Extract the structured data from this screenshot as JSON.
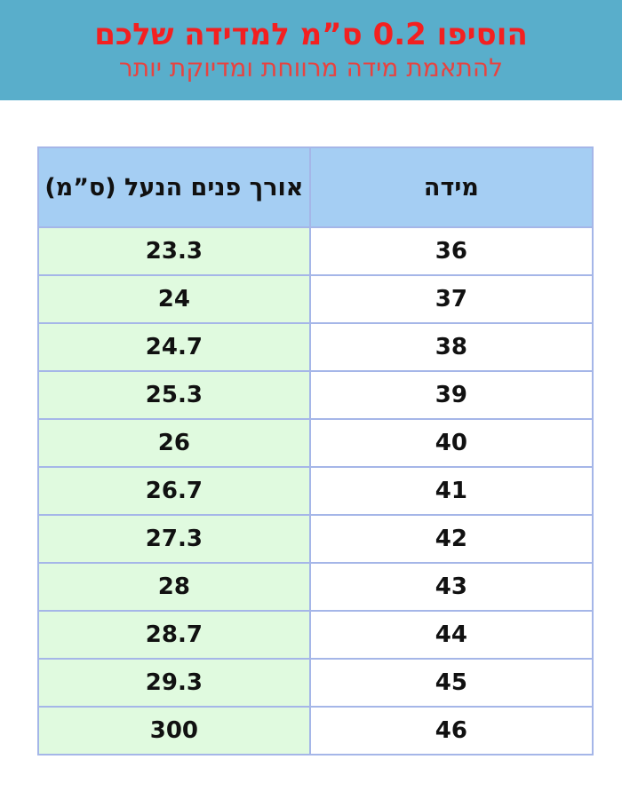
{
  "banner": {
    "title": "הוסיפו 0.2 ס”מ למדידה שלכם",
    "subtitle": "להתאמת מידה מרווחת ומדיוקת יותר"
  },
  "table": {
    "columns": [
      {
        "key": "size",
        "label": "מידה"
      },
      {
        "key": "length",
        "label": "אורך פנים הנעל  (ס”מ)"
      }
    ],
    "rows": [
      {
        "size": "36",
        "length": "23.3"
      },
      {
        "size": "37",
        "length": "24"
      },
      {
        "size": "38",
        "length": "24.7"
      },
      {
        "size": "39",
        "length": "25.3"
      },
      {
        "size": "40",
        "length": "26"
      },
      {
        "size": "41",
        "length": "26.7"
      },
      {
        "size": "42",
        "length": "27.3"
      },
      {
        "size": "43",
        "length": "28"
      },
      {
        "size": "44",
        "length": "28.7"
      },
      {
        "size": "45",
        "length": "29.3"
      },
      {
        "size": "46",
        "length": "300"
      }
    ]
  },
  "chart_data": {
    "type": "table",
    "title": "הוסיפו 0.2 ס”מ למדידה שלכם",
    "subtitle": "להתאמת מידה מרווחת ומדיוקת יותר",
    "columns": [
      "מידה",
      "אורך פנים הנעל  (ס”מ)"
    ],
    "categories": [
      "36",
      "37",
      "38",
      "39",
      "40",
      "41",
      "42",
      "43",
      "44",
      "45",
      "46"
    ],
    "values": [
      23.3,
      24,
      24.7,
      25.3,
      26,
      26.7,
      27.3,
      28,
      28.7,
      29.3,
      300
    ]
  },
  "colors": {
    "banner_bg": "#59AECB",
    "title_red": "#F32020",
    "subtitle_red": "#E74340",
    "header_bg": "#A5CEF3",
    "length_cell_bg": "#E0FADF",
    "grid_border": "#A5B6E8",
    "text": "#111111"
  }
}
